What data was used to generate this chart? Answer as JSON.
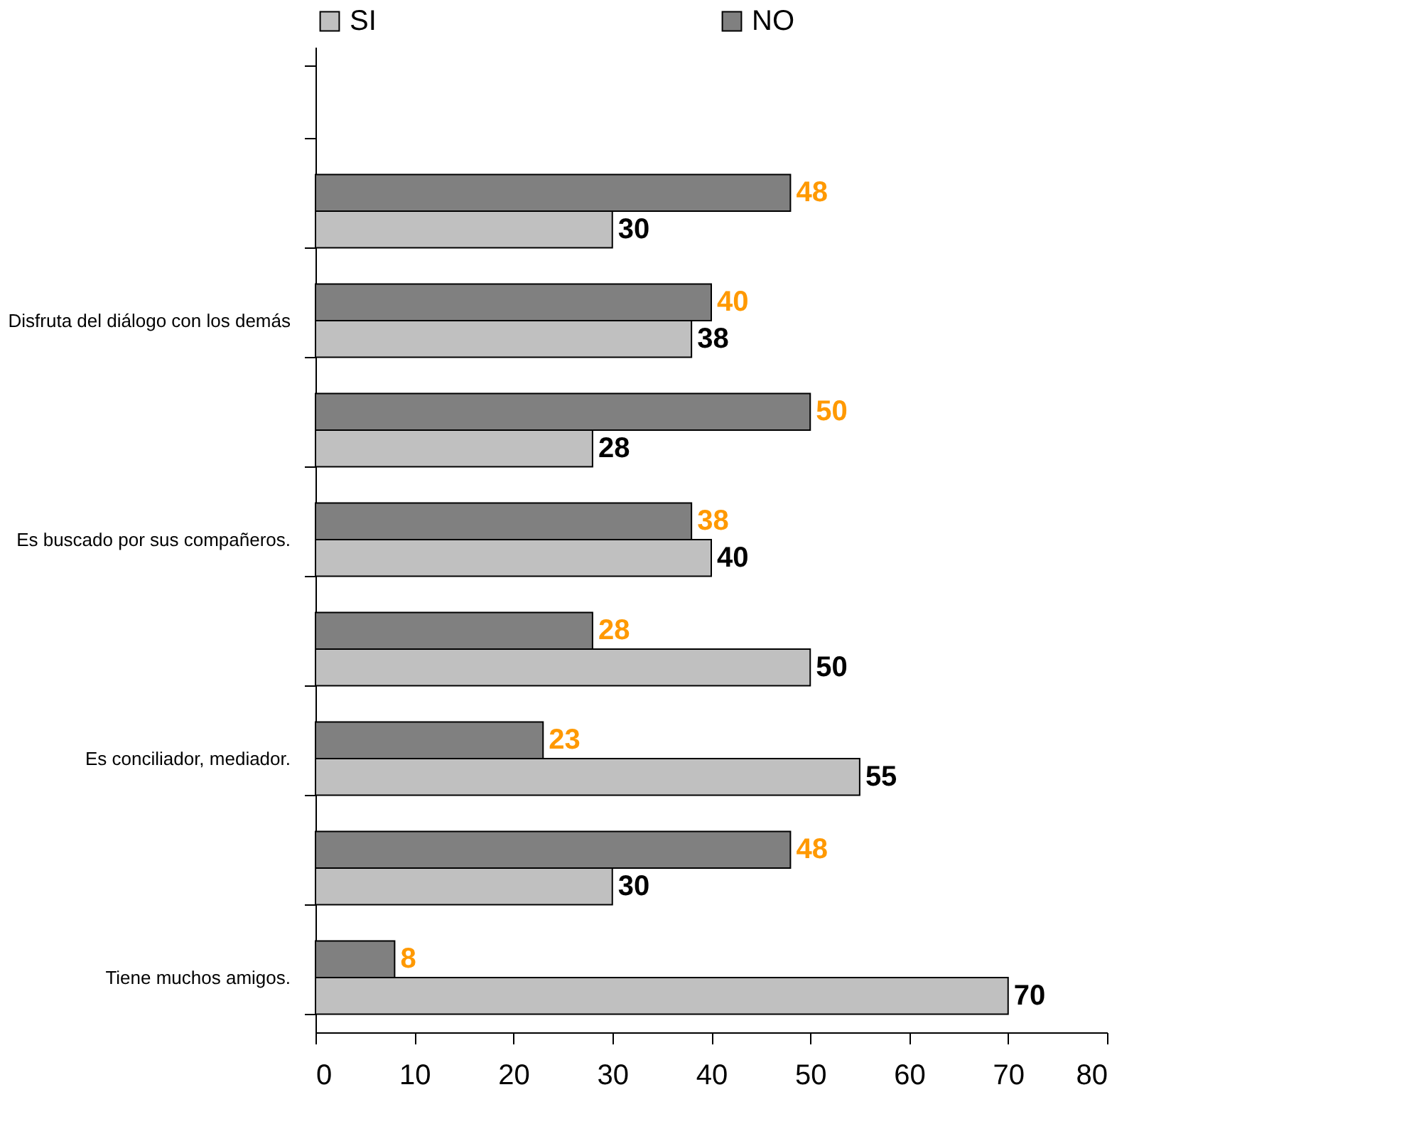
{
  "chart_data": {
    "type": "bar",
    "orientation": "horizontal",
    "categories": [
      null,
      null,
      "Disfruta del diálogo con los demás",
      null,
      "Es buscado por sus compañeros.",
      null,
      "Es conciliador, mediador.",
      null,
      "Tiene muchos amigos."
    ],
    "series": [
      {
        "name": "SI",
        "color": "#c0c0c0",
        "values": [
          null,
          30,
          38,
          28,
          40,
          50,
          55,
          30,
          70
        ]
      },
      {
        "name": "NO",
        "color": "#808080",
        "values": [
          null,
          48,
          40,
          50,
          38,
          28,
          23,
          48,
          8
        ]
      }
    ],
    "xlim": [
      0,
      80
    ],
    "xticks": [
      0,
      10,
      20,
      30,
      40,
      50,
      60,
      70,
      80
    ],
    "data_labels": true,
    "legend": "top",
    "grid": false
  }
}
